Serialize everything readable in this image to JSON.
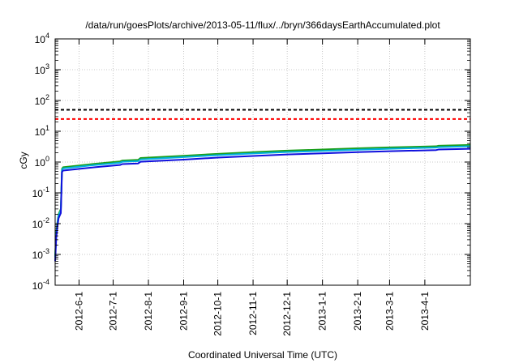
{
  "chart_data": {
    "type": "line",
    "title": "/data/run/goesPlots/archive/2013-05-11/flux/../bryn/366daysEarthAccumulated.plot",
    "xlabel": "Coordinated Universal Time (UTC)",
    "ylabel": "cGy",
    "yscale": "log",
    "ylim": [
      0.0001,
      10000
    ],
    "xlim": [
      "2012-05-11",
      "2013-05-11"
    ],
    "grid": true,
    "y_ticks": [
      {
        "value": 0.0001,
        "base": "10",
        "exp": "-4"
      },
      {
        "value": 0.001,
        "base": "10",
        "exp": "-3"
      },
      {
        "value": 0.01,
        "base": "10",
        "exp": "-2"
      },
      {
        "value": 0.1,
        "base": "10",
        "exp": "-1"
      },
      {
        "value": 1,
        "base": "10",
        "exp": "0"
      },
      {
        "value": 10,
        "base": "10",
        "exp": "1"
      },
      {
        "value": 100,
        "base": "10",
        "exp": "2"
      },
      {
        "value": 1000,
        "base": "10",
        "exp": "3"
      },
      {
        "value": 10000,
        "base": "10",
        "exp": "4"
      }
    ],
    "x_ticks": [
      "2012-6-1",
      "2012-7-1",
      "2012-8-1",
      "2012-9-1",
      "2012-10-1",
      "2012-11-1",
      "2012-12-1",
      "2013-1-1",
      "2013-2-1",
      "2013-3-1",
      "2013-4-1"
    ],
    "reference_lines": [
      {
        "y": 50,
        "color": "#000000",
        "style": "dashed"
      },
      {
        "y": 25,
        "color": "#ff0000",
        "style": "dashed"
      }
    ],
    "series": [
      {
        "color": "#1a9e1a",
        "x": [
          "2012-05-11",
          "2012-05-12",
          "2012-05-13",
          "2012-05-14",
          "2012-05-16",
          "2012-05-17",
          "2012-05-18",
          "2012-06-15",
          "2012-07-07",
          "2012-07-09",
          "2012-07-23",
          "2012-07-25",
          "2012-09-01",
          "2012-10-01",
          "2012-11-01",
          "2012-12-01",
          "2013-01-01",
          "2013-02-01",
          "2013-03-01",
          "2013-04-11",
          "2013-04-13",
          "2013-05-11"
        ],
        "y": [
          0.0009,
          0.005,
          0.011,
          0.02,
          0.03,
          0.6,
          0.68,
          0.88,
          1.05,
          1.12,
          1.18,
          1.35,
          1.6,
          1.85,
          2.1,
          2.35,
          2.55,
          2.8,
          3.0,
          3.25,
          3.38,
          3.6
        ]
      },
      {
        "color": "#00b0e0",
        "x": [
          "2012-05-11",
          "2012-05-12",
          "2012-05-13",
          "2012-05-14",
          "2012-05-16",
          "2012-05-17",
          "2012-05-18",
          "2012-06-15",
          "2012-07-07",
          "2012-07-09",
          "2012-07-23",
          "2012-07-25",
          "2012-09-01",
          "2012-10-01",
          "2012-11-01",
          "2012-12-01",
          "2013-01-01",
          "2013-02-01",
          "2013-03-01",
          "2013-04-11",
          "2013-04-13",
          "2013-05-11"
        ],
        "y": [
          0.0008,
          0.0045,
          0.01,
          0.018,
          0.027,
          0.55,
          0.62,
          0.8,
          0.95,
          1.02,
          1.07,
          1.22,
          1.45,
          1.68,
          1.9,
          2.12,
          2.3,
          2.52,
          2.7,
          2.95,
          3.05,
          3.25
        ]
      },
      {
        "color": "#1010dd",
        "x": [
          "2012-05-11",
          "2012-05-12",
          "2012-05-13",
          "2012-05-14",
          "2012-05-16",
          "2012-05-17",
          "2012-05-18",
          "2012-06-15",
          "2012-07-07",
          "2012-07-09",
          "2012-07-23",
          "2012-07-25",
          "2012-09-01",
          "2012-10-01",
          "2012-11-01",
          "2012-12-01",
          "2013-01-01",
          "2013-02-01",
          "2013-03-01",
          "2013-04-11",
          "2013-04-13",
          "2013-05-11"
        ],
        "y": [
          0.0006,
          0.0035,
          0.008,
          0.015,
          0.022,
          0.47,
          0.53,
          0.68,
          0.8,
          0.86,
          0.9,
          1.02,
          1.2,
          1.4,
          1.58,
          1.76,
          1.92,
          2.1,
          2.25,
          2.45,
          2.55,
          2.7
        ]
      }
    ]
  }
}
